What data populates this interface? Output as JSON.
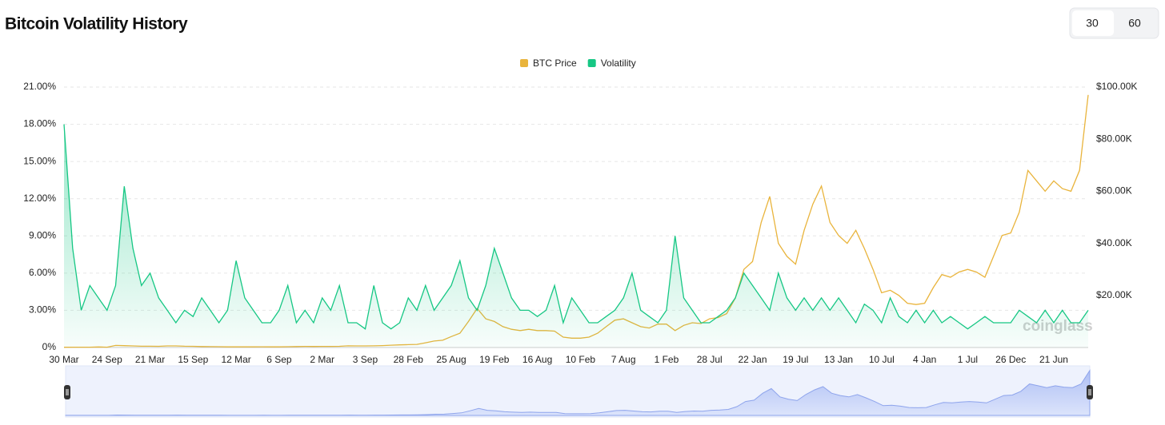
{
  "header": {
    "title": "Bitcoin Volatility History"
  },
  "buttons": [
    "30",
    "60"
  ],
  "watermark": "coinglass",
  "chart_data": {
    "type": "line",
    "categories": [
      "30 Mar",
      null,
      null,
      null,
      null,
      "24 Sep",
      null,
      null,
      null,
      null,
      "21 Mar",
      null,
      null,
      null,
      null,
      "15 Sep",
      null,
      null,
      null,
      null,
      "12 Mar",
      null,
      null,
      null,
      null,
      "6 Sep",
      null,
      null,
      null,
      null,
      "2 Mar",
      null,
      null,
      null,
      null,
      "3 Sep",
      null,
      null,
      null,
      null,
      "28 Feb",
      null,
      null,
      null,
      null,
      "25 Aug",
      null,
      null,
      null,
      null,
      "19 Feb",
      null,
      null,
      null,
      null,
      "16 Aug",
      null,
      null,
      null,
      null,
      "10 Feb",
      null,
      null,
      null,
      null,
      "7 Aug",
      null,
      null,
      null,
      null,
      "1 Feb",
      null,
      null,
      null,
      null,
      "28 Jul",
      null,
      null,
      null,
      null,
      "22 Jan",
      null,
      null,
      null,
      null,
      "19 Jul",
      null,
      null,
      null,
      null,
      "13 Jan",
      null,
      null,
      null,
      null,
      "10 Jul",
      null,
      null,
      null,
      null,
      "4 Jan",
      null,
      null,
      null,
      null,
      "1 Jul",
      null,
      null,
      null,
      null,
      "26 Dec",
      null,
      null,
      null,
      null,
      "21 Jun",
      null,
      null,
      null,
      null
    ],
    "series": [
      {
        "name": "BTC Price",
        "color": "#e9b43c",
        "axis": "y2",
        "values": [
          90,
          110,
          120,
          130,
          200,
          130,
          800,
          700,
          600,
          500,
          500,
          450,
          600,
          620,
          500,
          450,
          380,
          350,
          300,
          250,
          250,
          240,
          250,
          280,
          250,
          240,
          300,
          380,
          430,
          400,
          420,
          430,
          450,
          650,
          600,
          600,
          650,
          750,
          900,
          1000,
          1100,
          1200,
          1800,
          2500,
          2800,
          4200,
          5500,
          10000,
          15000,
          11000,
          10000,
          8000,
          7000,
          6500,
          7000,
          6500,
          6500,
          6300,
          4000,
          3600,
          3600,
          4000,
          5500,
          8000,
          10500,
          11000,
          9500,
          8000,
          7500,
          9000,
          9000,
          6500,
          8500,
          9500,
          9200,
          11000,
          11500,
          13000,
          19000,
          30000,
          33000,
          48000,
          58000,
          40000,
          35000,
          32000,
          45000,
          55000,
          62000,
          48000,
          43000,
          40000,
          45000,
          38000,
          30000,
          21000,
          22000,
          20000,
          17000,
          16500,
          17000,
          23000,
          28000,
          27000,
          29000,
          30000,
          29000,
          27000,
          35000,
          43000,
          44000,
          52000,
          68000,
          64000,
          60000,
          64000,
          61000,
          60000,
          68000,
          97000
        ]
      },
      {
        "name": "Volatility",
        "color": "#16c784",
        "values": [
          18,
          8,
          3,
          5,
          4,
          3,
          5,
          13,
          8,
          5,
          6,
          4,
          3,
          2,
          3,
          2.5,
          4,
          3,
          2,
          3,
          7,
          4,
          3,
          2,
          2,
          3,
          5,
          2,
          3,
          2,
          4,
          3,
          5,
          2,
          2,
          1.5,
          5,
          2,
          1.5,
          2,
          4,
          3,
          5,
          3,
          4,
          5,
          7,
          4,
          3,
          5,
          8,
          6,
          4,
          3,
          3,
          2.5,
          3,
          5,
          2,
          4,
          3,
          2,
          2,
          2.5,
          3,
          4,
          6,
          3,
          2.5,
          2,
          3,
          9,
          4,
          3,
          2,
          2,
          2.5,
          3,
          4,
          6,
          5,
          4,
          3,
          6,
          4,
          3,
          4,
          3,
          4,
          3,
          4,
          3,
          2,
          3.5,
          3,
          2,
          4,
          2.5,
          2,
          3,
          2,
          3,
          2,
          2.5,
          2,
          1.5,
          2,
          2.5,
          2,
          2,
          2,
          3,
          2.5,
          2,
          3,
          2,
          3,
          2,
          2,
          3
        ]
      }
    ],
    "ylim": [
      0,
      21
    ],
    "yticks": [
      {
        "value": 0,
        "label": "0%"
      },
      {
        "value": 3,
        "label": "3.00%"
      },
      {
        "value": 6,
        "label": "6.00%"
      },
      {
        "value": 9,
        "label": "9.00%"
      },
      {
        "value": 12,
        "label": "12.00%"
      },
      {
        "value": 15,
        "label": "15.00%"
      },
      {
        "value": 18,
        "label": "18.00%"
      },
      {
        "value": 21,
        "label": "21.00%"
      }
    ],
    "y2lim": [
      0,
      100000
    ],
    "y2ticks": [
      {
        "value": 20000,
        "label": "$20.00K"
      },
      {
        "value": 40000,
        "label": "$40.00K"
      },
      {
        "value": 60000,
        "label": "$60.00K"
      },
      {
        "value": 80000,
        "label": "$80.00K"
      },
      {
        "value": 100000,
        "label": "$100.00K"
      }
    ],
    "grid": true,
    "legend": "top"
  }
}
